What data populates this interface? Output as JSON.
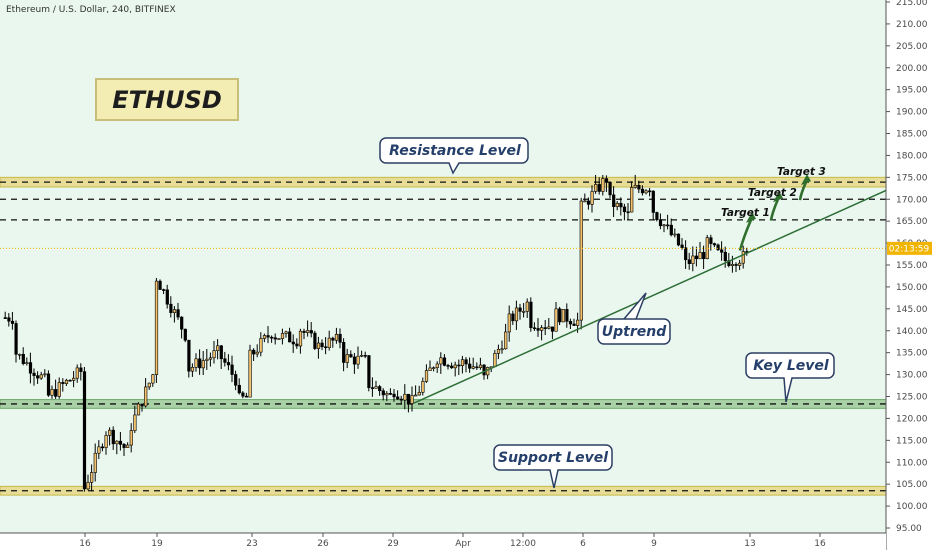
{
  "header": {
    "title": "Ethereum / U.S. Dollar, 240, BITFINEX"
  },
  "symbol_box": {
    "label": "ETHUSD"
  },
  "price_tag": {
    "label": "02:13:59",
    "price": 158.8
  },
  "colors": {
    "background": "#e9f7ee",
    "bull_candle": "#f3c26e",
    "bear_candle": "#000000",
    "resistance_zone": "#e7dd96",
    "key_zone": "#a9d1a6",
    "support_zone": "#e7dd96",
    "trendline": "#2d6d36",
    "target_arrow": "#2f6e2c",
    "callout_fill": "#ffffff",
    "callout_text": "#253f6b",
    "price_tag": "#f1b400"
  },
  "chart_data": {
    "type": "candlestick",
    "title": "Ethereum / U.S. Dollar, 240, BITFINEX",
    "ylim": [
      95,
      215
    ],
    "y_ticks": [
      95,
      100,
      105,
      110,
      115,
      120,
      125,
      130,
      135,
      140,
      145,
      150,
      155,
      160,
      165,
      170,
      175,
      180,
      185,
      190,
      195,
      200,
      205,
      210,
      215
    ],
    "x_tick_labels": [
      "16",
      "19",
      "23",
      "26",
      "29",
      "Apr",
      "12:00",
      "6",
      "9",
      "13",
      "16"
    ],
    "grid": false,
    "anchors": [
      [
        143,
        "14"
      ],
      [
        140,
        "14"
      ],
      [
        100,
        "14"
      ],
      [
        135,
        "14"
      ],
      [
        128,
        "15"
      ],
      [
        122,
        "15"
      ],
      [
        125,
        "15"
      ],
      [
        131,
        "16"
      ],
      [
        108,
        "16"
      ],
      [
        103,
        "16"
      ],
      [
        118,
        "17"
      ],
      [
        115,
        "17"
      ],
      [
        117,
        "17"
      ],
      [
        112,
        "18"
      ],
      [
        118,
        "18"
      ],
      [
        131,
        "19"
      ],
      [
        142,
        "19"
      ],
      [
        153,
        "19"
      ],
      [
        139,
        "20"
      ],
      [
        131,
        "20"
      ],
      [
        135,
        "21"
      ],
      [
        129,
        "22"
      ],
      [
        124,
        "22"
      ],
      [
        125,
        "23"
      ],
      [
        134,
        "23"
      ],
      [
        140,
        "24"
      ],
      [
        139,
        "24"
      ],
      [
        138,
        "25"
      ],
      [
        141,
        "25"
      ],
      [
        136,
        "26"
      ],
      [
        137,
        "26"
      ],
      [
        138,
        "27"
      ],
      [
        134,
        "27"
      ],
      [
        133,
        "28"
      ],
      [
        128,
        "28"
      ],
      [
        125,
        "29"
      ],
      [
        127,
        "29"
      ],
      [
        124,
        "30"
      ],
      [
        123.5,
        "30"
      ],
      [
        134,
        "31"
      ],
      [
        132,
        "Apr"
      ],
      [
        133,
        "Apr"
      ],
      [
        131,
        "02"
      ],
      [
        129,
        "02"
      ],
      [
        140,
        "03"
      ],
      [
        142,
        "03"
      ],
      [
        147,
        "04"
      ],
      [
        142,
        "04"
      ],
      [
        141,
        "05"
      ],
      [
        144,
        "05"
      ],
      [
        142,
        "06"
      ],
      [
        150,
        "06"
      ],
      [
        168,
        "06"
      ],
      [
        175,
        "07"
      ],
      [
        170,
        "07"
      ],
      [
        166,
        "08"
      ],
      [
        172,
        "08"
      ],
      [
        173,
        "09"
      ],
      [
        168,
        "09"
      ],
      [
        158,
        "10"
      ],
      [
        155,
        "10"
      ],
      [
        158,
        "11"
      ],
      [
        160,
        "11"
      ],
      [
        156,
        "12"
      ],
      [
        156,
        "12"
      ],
      [
        157,
        "13"
      ]
    ],
    "support_zone": [
      102.5,
      104.5
    ],
    "key_zone": [
      122.3,
      124.3
    ],
    "resistance_zone": [
      172.8,
      175
    ],
    "levels": {
      "support": 103.5,
      "key": 123.3,
      "resistance": 173.9,
      "target_1": 165.3,
      "target_2": 170.0,
      "target_3": 173.9
    },
    "trendline": {
      "start": [
        "30",
        123.5
      ],
      "end": [
        "16",
        172
      ]
    },
    "annotations": [
      {
        "id": "resistance",
        "text": "Resistance Level"
      },
      {
        "id": "support",
        "text": "Support Level"
      },
      {
        "id": "key",
        "text": "Key Level"
      },
      {
        "id": "uptrend",
        "text": "Uptrend"
      },
      {
        "id": "target1",
        "text": "Target 1"
      },
      {
        "id": "target2",
        "text": "Target 2"
      },
      {
        "id": "target3",
        "text": "Target 3"
      }
    ]
  }
}
